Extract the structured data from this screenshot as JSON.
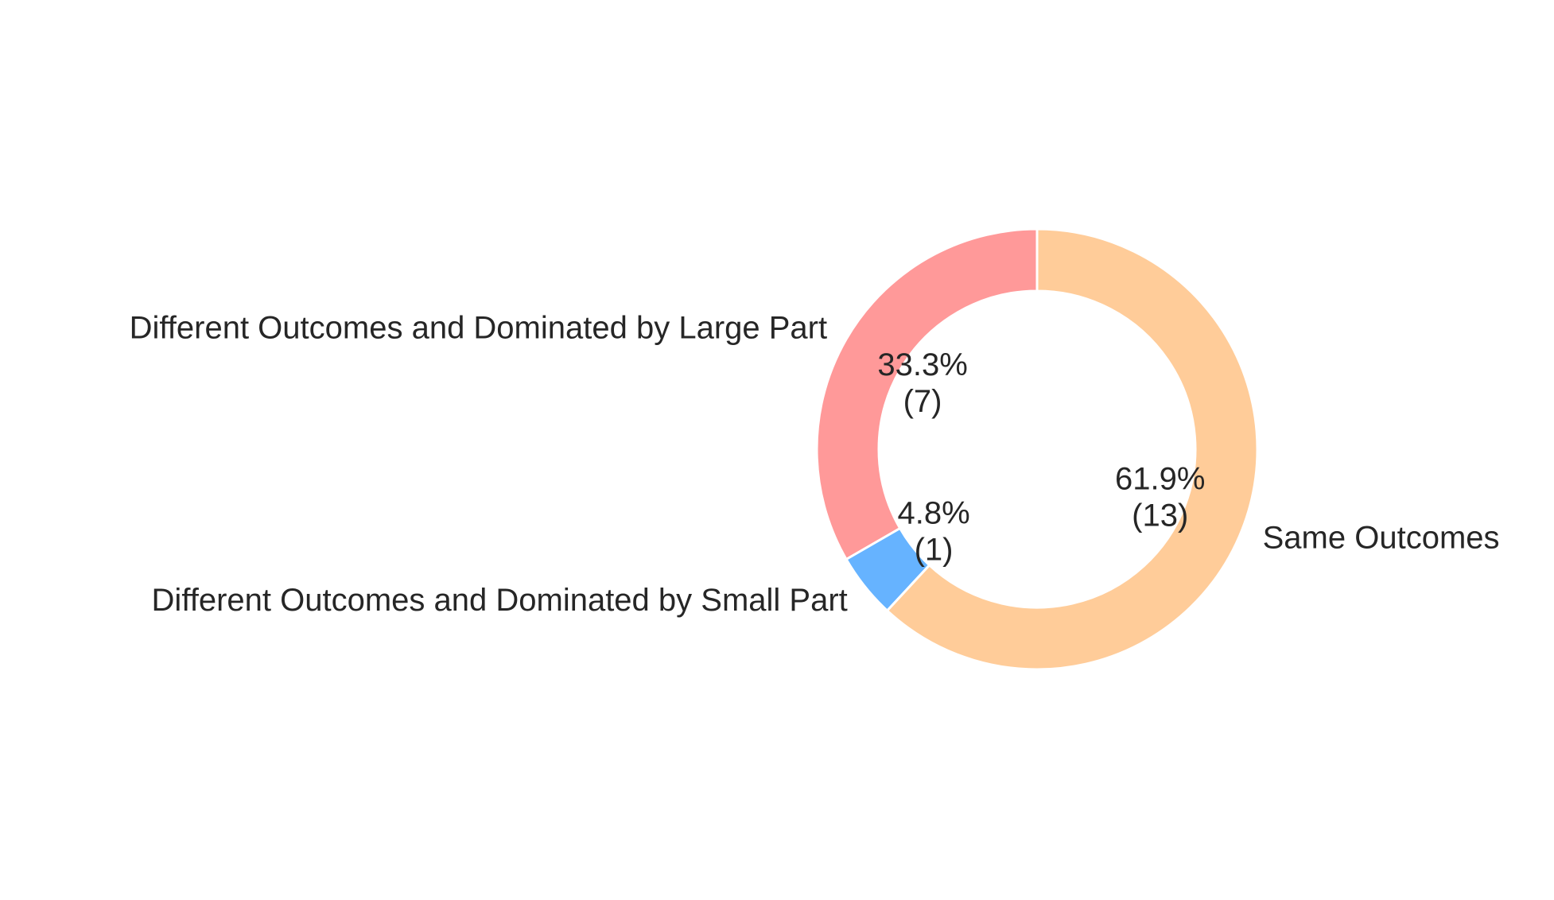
{
  "chart_data": {
    "type": "pie",
    "variant": "donut",
    "title": "",
    "start_angle_deg": 90,
    "direction": "counterclockwise",
    "categories": [
      "Different Outcomes and Dominated by Large Part",
      "Different Outcomes and Dominated by Small Part",
      "Same Outcomes"
    ],
    "values": [
      7,
      1,
      13
    ],
    "percent_labels": [
      "33.3%",
      "4.8%",
      "61.9%"
    ],
    "count_labels": [
      "(7)",
      "(1)",
      "(13)"
    ],
    "colors": [
      "#ff9999",
      "#66b3ff",
      "#ffcc99"
    ],
    "edge_color": "#ffffff",
    "legend": "none"
  }
}
